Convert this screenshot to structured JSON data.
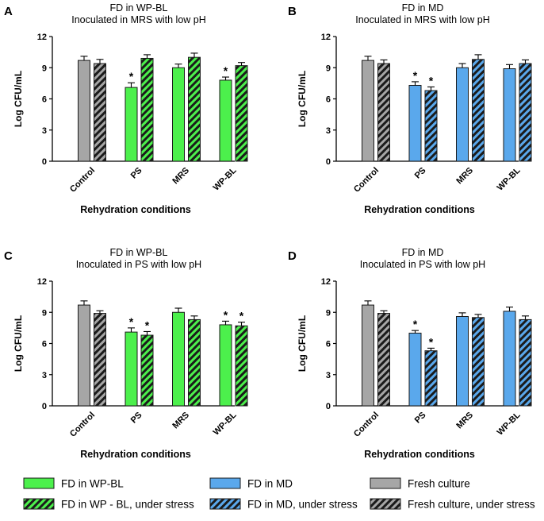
{
  "figure": {
    "colors": {
      "wpbl": "#4cf04c",
      "md": "#5aa8ec",
      "fresh": "#a6a6a6",
      "outline": "#1a1a1a"
    },
    "legend": [
      {
        "label": "FD in WP-BL",
        "color": "#4cf04c",
        "striped": false
      },
      {
        "label": "FD in WP - BL, under stress",
        "color": "#4cf04c",
        "striped": true
      },
      {
        "label": "FD in MD",
        "color": "#5aa8ec",
        "striped": false
      },
      {
        "label": "FD in MD, under stress",
        "color": "#5aa8ec",
        "striped": true
      },
      {
        "label": "Fresh culture",
        "color": "#a6a6a6",
        "striped": false
      },
      {
        "label": "Fresh culture, under stress",
        "color": "#a6a6a6",
        "striped": true
      }
    ]
  },
  "chart_data": [
    {
      "panel": "A",
      "type": "bar",
      "title": [
        "FD in WP-BL",
        "Inoculated in MRS with low pH"
      ],
      "xlabel": "Rehydration conditions",
      "ylabel": "Log CFU/mL",
      "ylim": [
        0,
        12
      ],
      "yticks": [
        0,
        3,
        6,
        9,
        12
      ],
      "categories": [
        "Control",
        "PS",
        "MRS",
        "WP-BL"
      ],
      "series": [
        {
          "name": "normal",
          "values": [
            9.7,
            7.1,
            9.0,
            7.8
          ],
          "errors": [
            0.4,
            0.45,
            0.35,
            0.3
          ],
          "stars": [
            false,
            true,
            false,
            true
          ]
        },
        {
          "name": "under stress",
          "values": [
            9.4,
            9.9,
            10.0,
            9.2
          ],
          "errors": [
            0.4,
            0.35,
            0.4,
            0.3
          ],
          "stars": [
            false,
            false,
            false,
            false
          ]
        }
      ],
      "series_colors": [
        "#a6a6a6",
        "#4cf04c",
        "#4cf04c",
        "#4cf04c"
      ]
    },
    {
      "panel": "B",
      "type": "bar",
      "title": [
        "FD in MD",
        "Inoculated in MRS with low pH"
      ],
      "xlabel": "Rehydration conditions",
      "ylabel": "Log CFU/mL",
      "ylim": [
        0,
        12
      ],
      "yticks": [
        0,
        3,
        6,
        9,
        12
      ],
      "categories": [
        "Control",
        "PS",
        "MRS",
        "WP-BL"
      ],
      "series": [
        {
          "name": "normal",
          "values": [
            9.7,
            7.3,
            9.0,
            8.9
          ],
          "errors": [
            0.4,
            0.35,
            0.4,
            0.4
          ],
          "stars": [
            false,
            true,
            false,
            false
          ]
        },
        {
          "name": "under stress",
          "values": [
            9.4,
            6.8,
            9.8,
            9.4
          ],
          "errors": [
            0.35,
            0.35,
            0.45,
            0.35
          ],
          "stars": [
            false,
            true,
            false,
            false
          ]
        }
      ],
      "series_colors": [
        "#a6a6a6",
        "#5aa8ec",
        "#5aa8ec",
        "#5aa8ec"
      ]
    },
    {
      "panel": "C",
      "type": "bar",
      "title": [
        "FD in WP-BL",
        "Inoculated in PS with low pH"
      ],
      "xlabel": "Rehydration conditions",
      "ylabel": "Log CFU/mL",
      "ylim": [
        0,
        12
      ],
      "yticks": [
        0,
        3,
        6,
        9,
        12
      ],
      "categories": [
        "Control",
        "PS",
        "MRS",
        "WP-BL"
      ],
      "series": [
        {
          "name": "normal",
          "values": [
            9.7,
            7.1,
            9.0,
            7.8
          ],
          "errors": [
            0.4,
            0.4,
            0.4,
            0.35
          ],
          "stars": [
            false,
            true,
            false,
            true
          ]
        },
        {
          "name": "under stress",
          "values": [
            8.9,
            6.8,
            8.3,
            7.7
          ],
          "errors": [
            0.25,
            0.35,
            0.35,
            0.35
          ],
          "stars": [
            false,
            true,
            false,
            true
          ]
        }
      ],
      "series_colors": [
        "#a6a6a6",
        "#4cf04c",
        "#4cf04c",
        "#4cf04c"
      ]
    },
    {
      "panel": "D",
      "type": "bar",
      "title": [
        "FD in MD",
        "Inoculated in PS with low pH"
      ],
      "xlabel": "Rehydration conditions",
      "ylabel": "Log CFU/mL",
      "ylim": [
        0,
        12
      ],
      "yticks": [
        0,
        3,
        6,
        9,
        12
      ],
      "categories": [
        "Control",
        "PS",
        "MRS",
        "WP-BL"
      ],
      "series": [
        {
          "name": "normal",
          "values": [
            9.7,
            7.0,
            8.6,
            9.1
          ],
          "errors": [
            0.4,
            0.25,
            0.35,
            0.4
          ],
          "stars": [
            false,
            true,
            false,
            false
          ]
        },
        {
          "name": "under stress",
          "values": [
            8.9,
            5.3,
            8.5,
            8.3
          ],
          "errors": [
            0.25,
            0.25,
            0.3,
            0.35
          ],
          "stars": [
            false,
            true,
            false,
            false
          ]
        }
      ],
      "series_colors": [
        "#a6a6a6",
        "#5aa8ec",
        "#5aa8ec",
        "#5aa8ec"
      ]
    }
  ]
}
